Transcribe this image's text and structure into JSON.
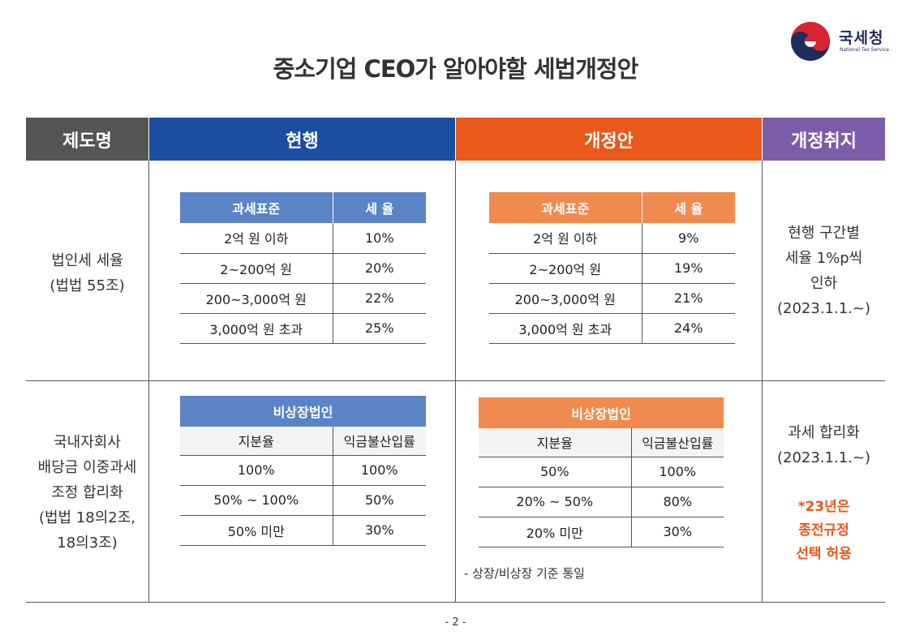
{
  "logo": {
    "korean": "국세청",
    "english": "National Tax Service"
  },
  "title": "중소기업 CEO가 알아야할 세법개정안",
  "header": {
    "col1": "제도명",
    "col2": "현행",
    "col3": "개정안",
    "col4": "개정취지",
    "colors": {
      "col1": "#555555",
      "col2": "#1b4ea3",
      "col3": "#e8591a",
      "col4": "#7b5ea7"
    }
  },
  "row1": {
    "name_line1": "법인세 세율",
    "name_line2": "(법법 55조)",
    "current": {
      "headers": [
        "과세표준",
        "세 율"
      ],
      "rows": [
        [
          "2억 원 이하",
          "10%"
        ],
        [
          "2~200억 원",
          "20%"
        ],
        [
          "200~3,000억 원",
          "22%"
        ],
        [
          "3,000억 원 초과",
          "25%"
        ]
      ]
    },
    "revised": {
      "headers": [
        "과세표준",
        "세 율"
      ],
      "rows": [
        [
          "2억 원 이하",
          "9%"
        ],
        [
          "2~200억 원",
          "19%"
        ],
        [
          "200~3,000억 원",
          "21%"
        ],
        [
          "3,000억 원 초과",
          "24%"
        ]
      ]
    },
    "purpose_line1": "현행 구간별",
    "purpose_line2": "세율 1%p씩",
    "purpose_line3": "인하",
    "purpose_line4": "(2023.1.1.~)"
  },
  "row2": {
    "name_line1": "국내자회사",
    "name_line2": "배당금 이중과세",
    "name_line3": "조정 합리화",
    "name_line4": "(법법 18의2조,",
    "name_line5": "18의3조)",
    "current": {
      "title": "비상장법인",
      "headers": [
        "지분율",
        "익금불산입률"
      ],
      "rows": [
        [
          "100%",
          "100%"
        ],
        [
          "50% ~ 100%",
          "50%"
        ],
        [
          "50% 미만",
          "30%"
        ]
      ]
    },
    "revised": {
      "title": "비상장법인",
      "headers": [
        "지분율",
        "익금불산입률"
      ],
      "rows": [
        [
          "50%",
          "100%"
        ],
        [
          "20% ~ 50%",
          "80%"
        ],
        [
          "20% 미만",
          "30%"
        ]
      ]
    },
    "note": "- 상장/비상장 기준 통일",
    "purpose_line1": "과세 합리화",
    "purpose_line2": "(2023.1.1.~)",
    "purpose_red1": "*23년은",
    "purpose_red2": "종전규정",
    "purpose_red3": "선택 허용"
  },
  "page_number": "- 2 -"
}
